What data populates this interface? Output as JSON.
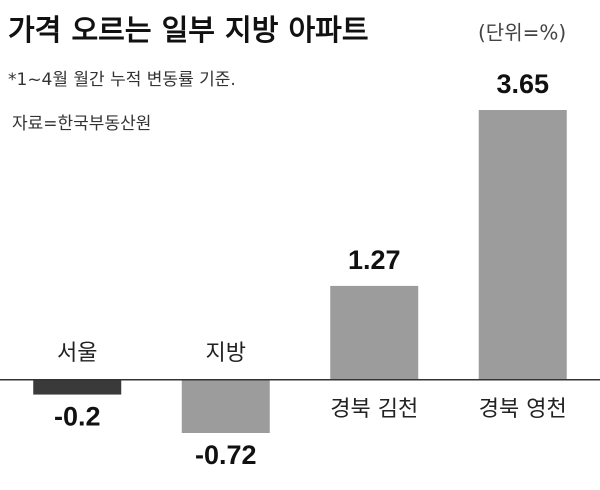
{
  "chart_data": {
    "type": "bar",
    "title": "가격 오르는 일부 지방 아파트",
    "subtitle": "(단위=%)",
    "annotations": [
      "*1~4월 월간 누적 변동률 기준.",
      "자료=한국부동산원"
    ],
    "categories": [
      "서울",
      "지방",
      "경북 김천",
      "경북 영천"
    ],
    "values": [
      -0.2,
      -0.72,
      1.27,
      3.65
    ],
    "colors": [
      "#3a3a3a",
      "#9c9c9c",
      "#9c9c9c",
      "#9c9c9c"
    ]
  }
}
